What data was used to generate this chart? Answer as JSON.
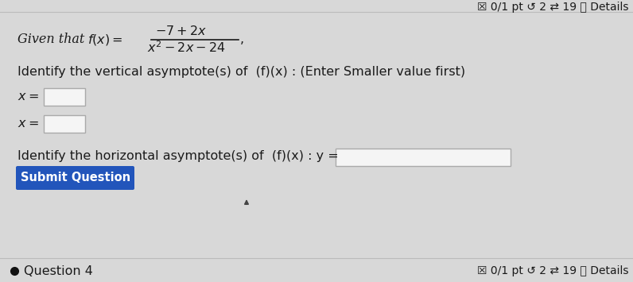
{
  "bg_color": "#d8d8d8",
  "top_bar_text": "☒ 0/1 pt ↺ 2 ⇄ 19 ⓘ Details",
  "vert_label": "Identify the vertical asymptote(s) of  (f)(x) : (Enter Smaller value first)",
  "horiz_label": "Identify the horizontal asymptote(s) of  (f)(x) : y =",
  "submit_text": "Submit Question",
  "submit_bg": "#2255bb",
  "submit_fg": "#ffffff",
  "bottom_dot_color": "#111111",
  "question4_text": "Question 4",
  "bottom_right_text": "☒ 0/1 pt ↺ 2 ⇄ 19 ⓘ Details",
  "separator_color": "#bbbbbb",
  "text_color": "#1a1a1a",
  "box_color": "#f5f5f5",
  "box_border": "#aaaaaa",
  "font_size_main": 11.5,
  "font_size_top": 10
}
